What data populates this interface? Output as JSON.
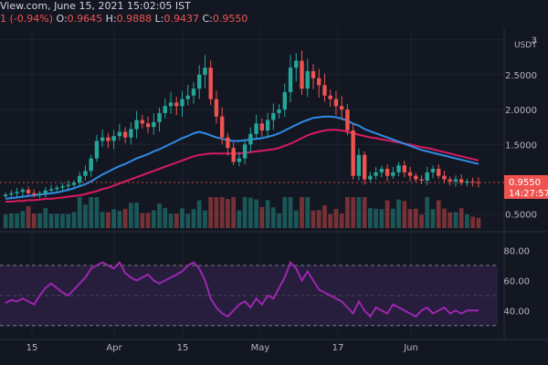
{
  "header": {
    "line1": "View.com, June 15, 2021 15:02:05 IST",
    "change": "1 (-0.94%)",
    "open_label": "O:",
    "open_value": "0.9645",
    "high_label": "H:",
    "high_value": "0.9888",
    "low_label": "L:",
    "low_value": "0.9437",
    "close_label": "C:",
    "close_value": "0.9550"
  },
  "price_scale": {
    "currency": "USDT",
    "ticks": [
      {
        "label": "3",
        "value": 3.0
      },
      {
        "label": "2.5000",
        "value": 2.5
      },
      {
        "label": "2.0000",
        "value": 2.0
      },
      {
        "label": "1.5000",
        "value": 1.5
      },
      {
        "label": "0.5000",
        "value": 0.5
      }
    ],
    "current_price": "0.9550",
    "countdown": "14:27:57"
  },
  "rsi_scale": {
    "ticks": [
      {
        "label": "80.00",
        "value": 80
      },
      {
        "label": "60.00",
        "value": 60
      },
      {
        "label": "40.00",
        "value": 40
      }
    ]
  },
  "x_axis": {
    "ticks": [
      "15",
      "Apr",
      "15",
      "May",
      "17",
      "Jun"
    ]
  },
  "colors": {
    "background": "#131722",
    "up": "#26a69a",
    "down": "#ef5350",
    "ma_fast": "#2e8be6",
    "ma_slow": "#d81b60",
    "rsi_line": "#9c27b0",
    "rsi_band": "#2a1e3f"
  },
  "chart_data": [
    {
      "type": "candlestick",
      "title": "",
      "ylabel": "USDT",
      "ylim": [
        0.3,
        3.1
      ],
      "closes": [
        0.78,
        0.8,
        0.82,
        0.85,
        0.8,
        0.78,
        0.8,
        0.84,
        0.86,
        0.88,
        0.9,
        0.92,
        0.95,
        1.05,
        1.12,
        1.3,
        1.55,
        1.6,
        1.55,
        1.62,
        1.68,
        1.6,
        1.72,
        1.85,
        1.8,
        1.75,
        1.82,
        1.95,
        2.05,
        2.1,
        2.05,
        2.15,
        2.2,
        2.3,
        2.5,
        2.6,
        2.15,
        1.9,
        1.6,
        1.45,
        1.25,
        1.3,
        1.5,
        1.65,
        1.8,
        1.7,
        1.85,
        1.95,
        2.0,
        2.25,
        2.6,
        2.7,
        2.3,
        2.55,
        2.45,
        2.35,
        2.2,
        2.15,
        2.05,
        2.0,
        1.7,
        1.05,
        1.35,
        1.0,
        1.05,
        1.1,
        1.15,
        1.05,
        1.1,
        1.2,
        1.1,
        1.05,
        1.0,
        0.98,
        1.1,
        1.15,
        1.05,
        1.0,
        0.97,
        1.0,
        0.95,
        0.97,
        0.96,
        0.955
      ],
      "ma_fast": [
        0.72,
        0.73,
        0.74,
        0.75,
        0.76,
        0.77,
        0.78,
        0.79,
        0.8,
        0.81,
        0.83,
        0.85,
        0.87,
        0.9,
        0.93,
        0.97,
        1.02,
        1.07,
        1.11,
        1.15,
        1.19,
        1.22,
        1.26,
        1.3,
        1.33,
        1.36,
        1.4,
        1.43,
        1.47,
        1.51,
        1.55,
        1.59,
        1.62,
        1.66,
        1.68,
        1.66,
        1.63,
        1.6,
        1.58,
        1.56,
        1.55,
        1.55,
        1.56,
        1.57,
        1.58,
        1.59,
        1.61,
        1.63,
        1.66,
        1.7,
        1.74,
        1.78,
        1.82,
        1.85,
        1.88,
        1.89,
        1.9,
        1.9,
        1.89,
        1.87,
        1.84,
        1.8,
        1.77,
        1.72,
        1.69,
        1.66,
        1.63,
        1.6,
        1.57,
        1.54,
        1.51,
        1.48,
        1.45,
        1.42,
        1.4,
        1.38,
        1.36,
        1.34,
        1.32,
        1.3,
        1.28,
        1.26,
        1.24,
        1.22
      ],
      "ma_slow": [
        0.68,
        0.68,
        0.69,
        0.69,
        0.7,
        0.7,
        0.71,
        0.72,
        0.72,
        0.73,
        0.74,
        0.75,
        0.76,
        0.77,
        0.79,
        0.81,
        0.83,
        0.86,
        0.88,
        0.91,
        0.94,
        0.97,
        1.0,
        1.03,
        1.06,
        1.09,
        1.12,
        1.15,
        1.18,
        1.21,
        1.24,
        1.27,
        1.3,
        1.33,
        1.35,
        1.36,
        1.37,
        1.37,
        1.37,
        1.37,
        1.37,
        1.37,
        1.38,
        1.39,
        1.4,
        1.41,
        1.42,
        1.43,
        1.45,
        1.48,
        1.51,
        1.55,
        1.59,
        1.63,
        1.66,
        1.68,
        1.7,
        1.71,
        1.71,
        1.7,
        1.68,
        1.66,
        1.64,
        1.62,
        1.6,
        1.59,
        1.57,
        1.56,
        1.54,
        1.53,
        1.51,
        1.5,
        1.48,
        1.46,
        1.45,
        1.43,
        1.41,
        1.39,
        1.37,
        1.35,
        1.33,
        1.31,
        1.29,
        1.27
      ]
    },
    {
      "type": "line",
      "title": "",
      "ylim": [
        25,
        90
      ],
      "band": [
        30,
        70
      ],
      "values": [
        45,
        47,
        46,
        48,
        46,
        44,
        50,
        55,
        58,
        55,
        52,
        50,
        54,
        58,
        62,
        68,
        70,
        72,
        70,
        68,
        72,
        65,
        62,
        60,
        62,
        64,
        60,
        58,
        60,
        62,
        64,
        66,
        70,
        72,
        68,
        60,
        48,
        42,
        38,
        36,
        40,
        44,
        46,
        42,
        48,
        44,
        50,
        48,
        55,
        62,
        72,
        68,
        60,
        66,
        60,
        54,
        52,
        50,
        48,
        46,
        42,
        38,
        46,
        40,
        36,
        42,
        40,
        38,
        44,
        42,
        40,
        38,
        36,
        40,
        42,
        38,
        40,
        42,
        38,
        40,
        38,
        40,
        40,
        40
      ]
    }
  ]
}
